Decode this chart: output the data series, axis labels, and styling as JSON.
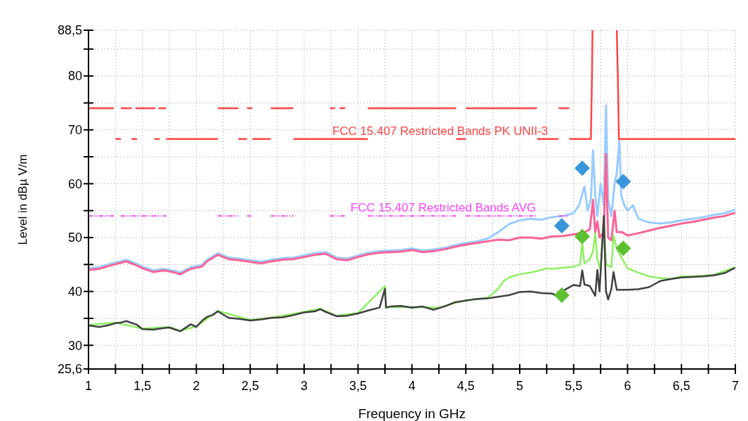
{
  "chart_data": {
    "type": "line",
    "xlabel": "Frequency in GHz",
    "ylabel": "Level in dBµ V/m",
    "xlim": [
      1,
      7
    ],
    "ylim": [
      25.6,
      88.5
    ],
    "xticks": [
      1,
      {
        "value": 1.25,
        "label": null
      },
      {
        "value": 1.5,
        "label": "1,5"
      },
      {
        "value": 1.75,
        "label": null
      },
      2,
      {
        "value": 2.25,
        "label": null
      },
      {
        "value": 2.5,
        "label": "2,5"
      },
      {
        "value": 2.75,
        "label": null
      },
      3,
      {
        "value": 3.25,
        "label": null
      },
      {
        "value": 3.5,
        "label": "3,5"
      },
      {
        "value": 3.75,
        "label": null
      },
      4,
      {
        "value": 4.25,
        "label": null
      },
      {
        "value": 4.5,
        "label": "4,5"
      },
      {
        "value": 4.75,
        "label": null
      },
      5,
      {
        "value": 5.25,
        "label": null
      },
      {
        "value": 5.5,
        "label": "5,5"
      },
      {
        "value": 5.75,
        "label": null
      },
      6,
      {
        "value": 6.25,
        "label": null
      },
      {
        "value": 6.5,
        "label": "6,5"
      },
      {
        "value": 6.75,
        "label": null
      },
      7
    ],
    "yticks": [
      {
        "value": 25.6,
        "label": "25,6"
      },
      30,
      {
        "value": 35,
        "label": null
      },
      40,
      {
        "value": 45,
        "label": null
      },
      50,
      {
        "value": 55,
        "label": null
      },
      60,
      {
        "value": 65,
        "label": null
      },
      70,
      {
        "value": 75,
        "label": null
      },
      80,
      {
        "value": 85,
        "label": null
      },
      {
        "value": 88.5,
        "label": "88,5"
      }
    ],
    "grid": true,
    "annotations": [
      "FCC 15.407 Restricted Bands PK UNII-3",
      "FCC 15.407 Restricted Bands AVG"
    ],
    "series": [
      {
        "color": "#99ccff",
        "x": [
          1.0,
          1.1,
          1.2,
          1.3,
          1.35,
          1.45,
          1.5,
          1.6,
          1.7,
          1.8,
          1.85,
          1.95,
          2.05,
          2.1,
          2.2,
          2.3,
          2.4,
          2.5,
          2.6,
          2.7,
          2.8,
          2.9,
          3.0,
          3.1,
          3.2,
          3.3,
          3.4,
          3.5,
          3.6,
          3.7,
          3.8,
          3.9,
          4.0,
          4.1,
          4.2,
          4.3,
          4.4,
          4.5,
          4.6,
          4.7,
          4.8,
          4.9,
          5.0,
          5.1,
          5.2,
          5.3,
          5.4,
          5.5,
          5.55,
          5.6,
          5.63,
          5.66,
          5.68,
          5.7,
          5.72,
          5.75,
          5.78,
          5.8,
          5.82,
          5.85,
          5.88,
          5.9,
          5.925,
          5.94,
          5.97,
          6.0,
          6.05,
          6.1,
          6.2,
          6.3,
          6.4,
          6.5,
          6.6,
          6.7,
          6.8,
          6.9,
          7.0
        ],
        "values": [
          44.3,
          44.5,
          45.1,
          45.6,
          45.9,
          45.1,
          44.6,
          43.9,
          44.2,
          43.8,
          43.5,
          44.5,
          44.9,
          45.9,
          47.1,
          46.3,
          46.1,
          45.8,
          45.5,
          45.9,
          46.2,
          46.3,
          46.7,
          47.1,
          47.3,
          46.3,
          46.1,
          46.7,
          47.2,
          47.5,
          47.6,
          47.7,
          48,
          47.6,
          47.8,
          48.1,
          48.6,
          49,
          49.3,
          49.8,
          51,
          52.5,
          53.2,
          53.5,
          53.3,
          53.8,
          54,
          54.5,
          56,
          59.5,
          55,
          57,
          66.2,
          58,
          54,
          60,
          56,
          74.5,
          57,
          54,
          60,
          62,
          68.2,
          58,
          56,
          55,
          56,
          53.5,
          52.8,
          52.6,
          52.8,
          53.2,
          53.5,
          53.8,
          54.2,
          54.5,
          55.2
        ]
      },
      {
        "color": "#fa6496",
        "x": [
          1.0,
          1.1,
          1.2,
          1.3,
          1.35,
          1.45,
          1.5,
          1.6,
          1.7,
          1.8,
          1.85,
          1.95,
          2.05,
          2.1,
          2.2,
          2.3,
          2.4,
          2.5,
          2.6,
          2.7,
          2.8,
          2.9,
          3.0,
          3.1,
          3.2,
          3.3,
          3.4,
          3.5,
          3.6,
          3.7,
          3.8,
          3.9,
          4.0,
          4.1,
          4.2,
          4.3,
          4.4,
          4.5,
          4.6,
          4.7,
          4.8,
          4.9,
          5.0,
          5.1,
          5.2,
          5.3,
          5.4,
          5.5,
          5.6,
          5.65,
          5.68,
          5.7,
          5.72,
          5.74,
          5.78,
          5.8,
          5.82,
          5.85,
          5.88,
          5.9,
          5.95,
          6.0,
          6.1,
          6.2,
          6.3,
          6.4,
          6.5,
          6.6,
          6.7,
          6.8,
          6.9,
          7.0
        ],
        "values": [
          44,
          44.2,
          44.8,
          45.3,
          45.6,
          44.8,
          44.3,
          43.6,
          43.9,
          43.5,
          43.2,
          44.2,
          44.6,
          45.6,
          46.8,
          46,
          45.8,
          45.5,
          45.2,
          45.6,
          45.9,
          46,
          46.4,
          46.8,
          47,
          46,
          45.8,
          46.4,
          46.9,
          47.2,
          47.3,
          47.4,
          47.7,
          47.3,
          47.5,
          47.8,
          48.3,
          48.7,
          49,
          49.3,
          49.6,
          49.5,
          50,
          50,
          49.8,
          50.2,
          50.3,
          50.6,
          51,
          51.5,
          57,
          51,
          53,
          50,
          51,
          65.5,
          50,
          49.5,
          55,
          51,
          51,
          50.4,
          50.8,
          51.3,
          51.8,
          52.2,
          52.6,
          52.9,
          53.3,
          53.7,
          54,
          54.6
        ]
      },
      {
        "color": "#8cf060",
        "x": [
          1.0,
          1.25,
          1.5,
          1.75,
          1.85,
          2.0,
          2.2,
          2.5,
          2.75,
          3.0,
          3.15,
          3.3,
          3.5,
          3.75,
          3.76,
          4.0,
          4.25,
          4.5,
          4.7,
          4.75,
          4.8,
          4.85,
          4.9,
          5.0,
          5.1,
          5.2,
          5.25,
          5.3,
          5.4,
          5.5,
          5.56,
          5.58,
          5.6,
          5.65,
          5.68,
          5.7,
          5.72,
          5.75,
          5.78,
          5.8,
          5.85,
          5.87,
          5.9,
          5.95,
          6.0,
          6.1,
          6.2,
          6.3,
          6.4,
          6.5,
          6.6,
          6.8,
          7.0
        ],
        "values": [
          33.8,
          34.2,
          33.1,
          33.4,
          32.7,
          33.5,
          36.4,
          34.7,
          35.3,
          36.2,
          36.8,
          35.5,
          36,
          41,
          37.1,
          37.1,
          37,
          38.4,
          38.8,
          39.6,
          40.5,
          41.9,
          42.6,
          43.2,
          43.5,
          44,
          44.3,
          44.2,
          44.4,
          44.6,
          45,
          49,
          45.2,
          46,
          47.5,
          50.8,
          46,
          44,
          54,
          45,
          44.5,
          50.4,
          48,
          46,
          44.3,
          43.5,
          42.8,
          42.5,
          42.3,
          42.8,
          42.8,
          43.1,
          44.5
        ]
      },
      {
        "color": "#404040",
        "x": [
          1.0,
          1.1,
          1.2,
          1.25,
          1.3,
          1.35,
          1.45,
          1.5,
          1.6,
          1.7,
          1.75,
          1.85,
          1.95,
          2.0,
          2.05,
          2.1,
          2.15,
          2.2,
          2.3,
          2.4,
          2.5,
          2.6,
          2.7,
          2.8,
          2.9,
          3.0,
          3.1,
          3.15,
          3.2,
          3.3,
          3.4,
          3.5,
          3.6,
          3.7,
          3.75,
          3.76,
          3.8,
          3.9,
          4.0,
          4.1,
          4.2,
          4.3,
          4.4,
          4.5,
          4.6,
          4.7,
          4.8,
          4.9,
          5.0,
          5.1,
          5.2,
          5.3,
          5.35,
          5.4,
          5.5,
          5.56,
          5.58,
          5.6,
          5.65,
          5.7,
          5.72,
          5.74,
          5.78,
          5.8,
          5.82,
          5.85,
          5.87,
          5.9,
          6.0,
          6.1,
          6.2,
          6.3,
          6.4,
          6.5,
          6.6,
          6.7,
          6.8,
          6.9,
          7.0
        ],
        "values": [
          33.7,
          33.4,
          33.8,
          34.1,
          34.2,
          34.5,
          33.8,
          33,
          32.9,
          33.2,
          33.3,
          32.6,
          33.9,
          33.4,
          34.5,
          35.3,
          35.6,
          36.3,
          35.1,
          34.9,
          34.6,
          34.8,
          35.1,
          35.2,
          35.6,
          36.1,
          36.3,
          36.7,
          36.2,
          35.4,
          35.5,
          35.9,
          36.5,
          37,
          40.5,
          37,
          37.2,
          37.3,
          37,
          37.2,
          36.6,
          37.2,
          38,
          38.3,
          38.6,
          38.7,
          39,
          39.3,
          39.9,
          40,
          39.7,
          39.6,
          39.1,
          40.1,
          41.2,
          41,
          43.9,
          41.3,
          41,
          39.2,
          44,
          40,
          54,
          40,
          38.5,
          40.5,
          43.6,
          40.3,
          40.3,
          40.4,
          40.8,
          41.9,
          42.3,
          42.6,
          42.7,
          42.8,
          43,
          43.4,
          44.4
        ]
      },
      {
        "color": "#ff4444",
        "x": [
          1.0,
          1.235,
          1.27,
          1.3,
          1.4,
          1.42,
          1.435,
          1.62,
          1.635,
          1.65,
          1.72,
          1.96,
          2.2,
          2.39,
          2.43,
          2.47,
          2.52,
          2.6,
          2.69,
          2.9,
          3.07,
          3.24,
          3.29,
          3.31,
          3.33,
          3.38,
          3.48,
          3.59,
          4.41,
          4.455,
          4.5,
          5.16,
          5.26,
          5.36,
          5.46
        ],
        "values": [
          74,
          74,
          null,
          74,
          74,
          null,
          74,
          74,
          null,
          74,
          74,
          null,
          74,
          74,
          null,
          74,
          74,
          null,
          74,
          74,
          null,
          74,
          74,
          null,
          74,
          74,
          null,
          74,
          74,
          null,
          74,
          74,
          null,
          74,
          74
        ]
      },
      {
        "color": "#ff4444",
        "x": [
          1.25,
          1.3,
          1.35,
          1.4,
          1.45,
          1.53,
          1.61,
          1.66,
          1.69,
          1.72,
          2.2,
          2.3,
          2.39,
          2.47,
          2.495,
          2.52,
          2.69,
          2.8,
          2.9,
          3.59,
          4.0,
          4.41,
          4.5,
          4.83,
          5.16,
          5.36,
          5.41,
          5.46,
          5.66,
          5.665,
          5.67,
          5.675,
          5.8,
          5.9,
          5.91,
          5.915,
          5.92,
          7.0
        ],
        "values": [
          68.3,
          68.3,
          null,
          68.3,
          68.3,
          null,
          68.3,
          68.3,
          null,
          68.3,
          68.3,
          null,
          68.3,
          68.3,
          null,
          68.3,
          68.3,
          null,
          68.3,
          68.3,
          null,
          68.3,
          68.3,
          null,
          68.3,
          68.3,
          null,
          68.3,
          68.3,
          74,
          80,
          88.5,
          null,
          88.5,
          80,
          74,
          68.3,
          68.3
        ]
      },
      {
        "color": "#ff44ff",
        "line_style": "dotted",
        "x": [
          1.0,
          1.235,
          1.27,
          1.3,
          1.72,
          1.96,
          2.2,
          2.39,
          2.43,
          2.47,
          2.52,
          2.6,
          2.69,
          2.9,
          3.07,
          3.24,
          3.38,
          3.48,
          3.59,
          4.41,
          4.455,
          4.5,
          5.16,
          5.26,
          5.36,
          5.46
        ],
        "values": [
          54,
          54,
          null,
          54,
          54,
          null,
          54,
          54,
          null,
          54,
          54,
          null,
          54,
          54,
          null,
          54,
          54,
          null,
          54,
          54,
          null,
          54,
          54,
          null,
          54,
          54
        ]
      },
      {
        "type": "scatter",
        "marker": "diamond",
        "color": "#3a96dc",
        "x": [
          5.39,
          5.58,
          5.96
        ],
        "values": [
          52.2,
          62.9,
          60.4
        ]
      },
      {
        "type": "scatter",
        "marker": "diamond",
        "color": "#5cc030",
        "x": [
          5.39,
          5.58,
          5.96
        ],
        "values": [
          39.3,
          50.2,
          48
        ]
      }
    ]
  }
}
